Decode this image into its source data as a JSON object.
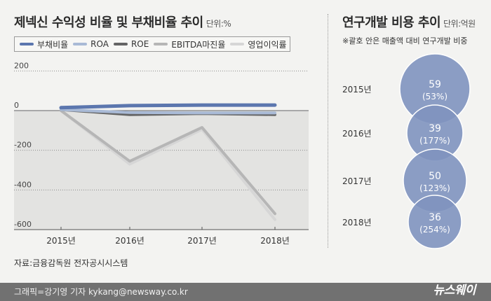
{
  "left_chart": {
    "title": "제넥신 수익성 비율 및 부채비율 추이",
    "unit": "단위:%",
    "source": "자료:금융감독원 전자공시시스템"
  },
  "right_chart": {
    "title": "연구개발 비용 추이",
    "unit": "단위:억원",
    "note": "※괄호 안은 매출액 대비 연구개발 비중"
  },
  "footer": {
    "credit": "그래픽=강기영 기자 kykang@newsway.co.kr",
    "logo": "뉴스웨이"
  },
  "chart_data": [
    {
      "type": "line",
      "title": "제넥신 수익성 비율 및 부채비율 추이",
      "unit": "단위:%",
      "categories": [
        "2015년",
        "2016년",
        "2017년",
        "2018년"
      ],
      "y_ticks": [
        "200",
        "0",
        "-200",
        "-400",
        "-600"
      ],
      "ylim": [
        -600,
        200
      ],
      "legend_position": "top",
      "series": [
        {
          "name": "부채비율",
          "color": "#5b76ae",
          "values": [
            15,
            25,
            28,
            28
          ]
        },
        {
          "name": "ROA",
          "color": "#a9bad6",
          "values": [
            5,
            -10,
            -12,
            -12
          ]
        },
        {
          "name": "ROE",
          "color": "#656565",
          "values": [
            5,
            -20,
            -15,
            -20
          ]
        },
        {
          "name": "EBITDA마진율",
          "color": "#b6b6b6",
          "values": [
            0,
            -255,
            -85,
            -520
          ]
        },
        {
          "name": "영업이익률",
          "color": "#d6d6d6",
          "values": [
            0,
            -270,
            -95,
            -550
          ]
        }
      ]
    },
    {
      "type": "bubble",
      "title": "연구개발 비용 추이",
      "unit": "단위:억원",
      "categories": [
        "2015년",
        "2016년",
        "2017년",
        "2018년"
      ],
      "values": [
        59,
        39,
        50,
        36
      ],
      "share_labels": [
        "(53%)",
        "(177%)",
        "(123%)",
        "(254%)"
      ],
      "color": "#7f93bf"
    }
  ]
}
